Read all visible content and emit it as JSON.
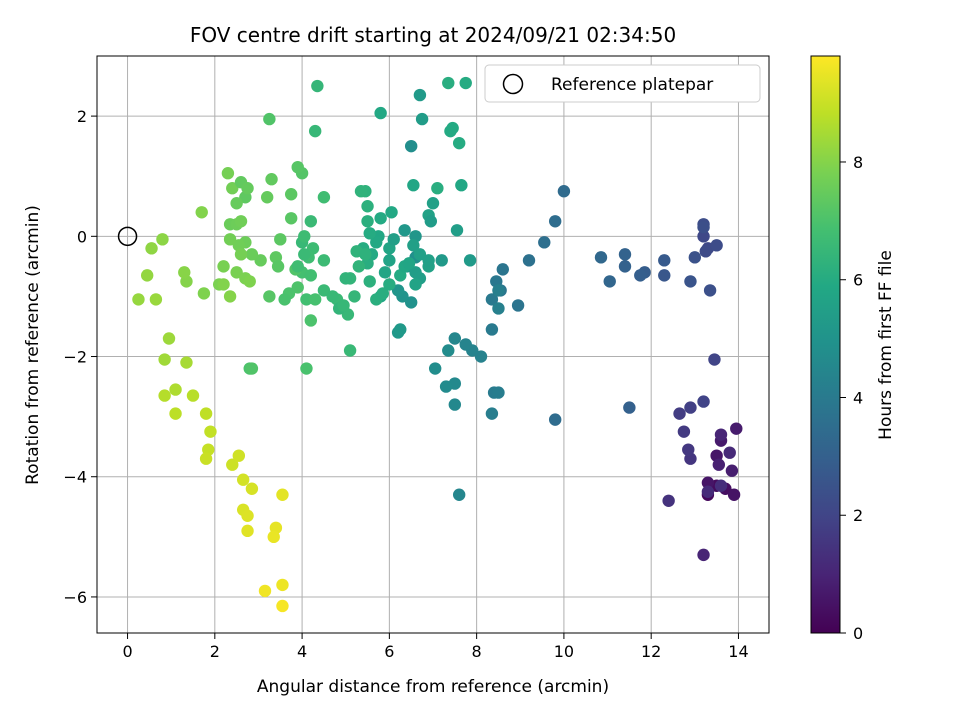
{
  "chart_data": {
    "type": "scatter",
    "title": "FOV centre drift starting at 2024/09/21 02:34:50",
    "xlabel": "Angular distance from reference (arcmin)",
    "ylabel": "Rotation from reference (arcmin)",
    "xlim": [
      -0.7,
      14.7
    ],
    "ylim": [
      -6.6,
      3.0
    ],
    "xticks": [
      0,
      2,
      4,
      6,
      8,
      10,
      12,
      14
    ],
    "yticks": [
      -6,
      -4,
      -2,
      0,
      2
    ],
    "xtick_labels": [
      "0",
      "2",
      "4",
      "6",
      "8",
      "10",
      "12",
      "14"
    ],
    "ytick_labels": [
      "−6",
      "−4",
      "−2",
      "0",
      "2"
    ],
    "grid": true,
    "legend": {
      "position": "upper-right",
      "entries": [
        "Reference platepar"
      ]
    },
    "reference_point": {
      "x": 0,
      "y": 0
    },
    "colorbar": {
      "label": "Hours from first FF file",
      "colormap": "viridis",
      "range": [
        0,
        9.8
      ],
      "ticks": [
        0,
        2,
        4,
        6,
        8
      ],
      "tick_labels": [
        "0",
        "2",
        "4",
        "6",
        "8"
      ]
    },
    "points": [
      [
        13.3,
        -4.3,
        0.2
      ],
      [
        13.5,
        -4.15,
        0.3
      ],
      [
        13.7,
        -4.2,
        0.4
      ],
      [
        13.9,
        -4.3,
        0.5
      ],
      [
        13.3,
        -4.1,
        0.55
      ],
      [
        13.5,
        -3.65,
        0.6
      ],
      [
        13.6,
        -3.4,
        0.7
      ],
      [
        13.95,
        -3.2,
        0.75
      ],
      [
        13.85,
        -3.9,
        0.8
      ],
      [
        13.55,
        -3.8,
        0.9
      ],
      [
        13.2,
        -5.3,
        1.0
      ],
      [
        13.6,
        -3.3,
        1.05
      ],
      [
        13.8,
        -3.6,
        1.15
      ],
      [
        13.3,
        -4.25,
        1.2
      ],
      [
        13.6,
        -4.15,
        1.3
      ],
      [
        12.4,
        -4.4,
        1.4
      ],
      [
        12.9,
        -3.7,
        1.5
      ],
      [
        12.85,
        -3.55,
        1.6
      ],
      [
        12.75,
        -3.25,
        1.65
      ],
      [
        12.65,
        -2.95,
        1.75
      ],
      [
        12.9,
        -2.85,
        1.85
      ],
      [
        13.2,
        -2.75,
        1.95
      ],
      [
        13.45,
        -2.05,
        2.0
      ],
      [
        13.2,
        -0.0,
        2.1
      ],
      [
        13.3,
        -0.2,
        2.15
      ],
      [
        13.25,
        -0.25,
        2.2
      ],
      [
        13.5,
        -0.15,
        2.25
      ],
      [
        13.2,
        0.2,
        2.3
      ],
      [
        13.2,
        0.15,
        2.35
      ],
      [
        13.35,
        -0.9,
        2.4
      ],
      [
        13.0,
        -0.35,
        2.45
      ],
      [
        12.9,
        -0.75,
        2.55
      ],
      [
        12.3,
        -0.65,
        2.65
      ],
      [
        12.3,
        -0.4,
        2.75
      ],
      [
        11.85,
        -0.6,
        2.85
      ],
      [
        11.75,
        -0.65,
        2.95
      ],
      [
        11.5,
        -2.85,
        3.0
      ],
      [
        11.4,
        -0.5,
        3.05
      ],
      [
        11.4,
        -0.3,
        3.1
      ],
      [
        11.05,
        -0.75,
        3.2
      ],
      [
        10.85,
        -0.35,
        3.3
      ],
      [
        10.0,
        0.75,
        3.4
      ],
      [
        9.8,
        -3.05,
        3.45
      ],
      [
        9.8,
        0.25,
        3.5
      ],
      [
        9.55,
        -0.1,
        3.55
      ],
      [
        9.2,
        -0.4,
        3.65
      ],
      [
        8.95,
        -1.15,
        3.75
      ],
      [
        8.6,
        -0.55,
        3.8
      ],
      [
        8.55,
        -0.9,
        3.85
      ],
      [
        8.45,
        -0.75,
        3.9
      ],
      [
        8.35,
        -1.05,
        3.95
      ],
      [
        8.35,
        -1.55,
        4.0
      ],
      [
        8.4,
        -2.6,
        4.05
      ],
      [
        8.5,
        -2.6,
        4.1
      ],
      [
        8.35,
        -2.95,
        4.15
      ],
      [
        8.5,
        -0.9,
        4.2
      ],
      [
        8.5,
        -1.2,
        4.25
      ],
      [
        8.1,
        -2.0,
        4.3
      ],
      [
        7.9,
        -1.9,
        4.35
      ],
      [
        7.75,
        -1.8,
        4.4
      ],
      [
        7.6,
        -4.3,
        4.45
      ],
      [
        7.5,
        -1.7,
        4.5
      ],
      [
        7.5,
        -2.8,
        4.55
      ],
      [
        7.5,
        -2.45,
        4.6
      ],
      [
        7.3,
        -2.5,
        4.65
      ],
      [
        7.35,
        -1.9,
        4.7
      ],
      [
        7.05,
        -2.2,
        4.75
      ],
      [
        6.5,
        1.5,
        4.8
      ],
      [
        6.6,
        -0.35,
        4.85
      ],
      [
        6.4,
        -0.5,
        4.9
      ],
      [
        6.5,
        -1.1,
        4.95
      ],
      [
        6.3,
        -1.0,
        5.0
      ],
      [
        6.2,
        -0.9,
        5.05
      ],
      [
        6.6,
        0.0,
        5.1
      ],
      [
        6.35,
        0.1,
        5.15
      ],
      [
        6.2,
        -1.6,
        5.2
      ],
      [
        6.25,
        -1.55,
        5.25
      ],
      [
        6.7,
        2.35,
        5.3
      ],
      [
        6.75,
        1.95,
        5.35
      ],
      [
        6.6,
        -0.6,
        5.4
      ],
      [
        6.7,
        -0.7,
        5.45
      ],
      [
        6.55,
        -0.15,
        5.5
      ],
      [
        6.7,
        -0.3,
        5.55
      ],
      [
        6.9,
        0.35,
        5.6
      ],
      [
        6.0,
        -0.4,
        5.65
      ],
      [
        6.0,
        -0.2,
        5.7
      ],
      [
        5.9,
        -0.6,
        5.75
      ],
      [
        5.8,
        -1.0,
        5.8
      ],
      [
        5.75,
        0.0,
        5.85
      ],
      [
        5.7,
        -0.1,
        5.9
      ],
      [
        5.6,
        -0.3,
        5.95
      ],
      [
        5.55,
        0.05,
        6.0
      ],
      [
        5.4,
        -0.2,
        6.05
      ],
      [
        5.5,
        -0.45,
        6.1
      ],
      [
        5.5,
        0.25,
        6.15
      ],
      [
        5.5,
        0.5,
        6.2
      ],
      [
        5.45,
        0.75,
        6.25
      ],
      [
        5.35,
        0.75,
        6.3
      ],
      [
        5.3,
        -0.5,
        6.35
      ],
      [
        5.1,
        -0.7,
        6.4
      ],
      [
        5.2,
        -1.0,
        6.45
      ],
      [
        5.05,
        -1.3,
        6.5
      ],
      [
        5.1,
        -1.9,
        6.55
      ],
      [
        4.8,
        -1.05,
        6.6
      ],
      [
        4.5,
        -0.4,
        6.65
      ],
      [
        4.25,
        -0.2,
        6.7
      ],
      [
        4.15,
        -0.35,
        6.75
      ],
      [
        4.1,
        -1.05,
        6.8
      ],
      [
        4.0,
        -0.6,
        6.85
      ],
      [
        4.3,
        -1.05,
        6.9
      ],
      [
        4.1,
        -2.2,
        6.95
      ],
      [
        4.2,
        -1.4,
        7.0
      ],
      [
        3.9,
        -0.85,
        7.05
      ],
      [
        3.85,
        -0.55,
        7.1
      ],
      [
        4.0,
        1.05,
        7.15
      ],
      [
        3.9,
        1.15,
        7.2
      ],
      [
        3.75,
        0.3,
        7.25
      ],
      [
        3.5,
        -0.05,
        7.3
      ],
      [
        3.4,
        -0.35,
        7.35
      ],
      [
        3.3,
        0.95,
        7.4
      ],
      [
        3.2,
        0.65,
        7.45
      ],
      [
        3.05,
        -0.4,
        7.5
      ],
      [
        2.85,
        -0.3,
        7.55
      ],
      [
        2.7,
        -0.1,
        7.6
      ],
      [
        2.55,
        -0.15,
        7.65
      ],
      [
        2.4,
        0.8,
        7.7
      ],
      [
        2.3,
        1.05,
        7.75
      ],
      [
        2.2,
        -0.5,
        7.8
      ],
      [
        2.1,
        -0.8,
        7.85
      ],
      [
        1.75,
        -0.95,
        7.9
      ],
      [
        1.7,
        0.4,
        7.95
      ],
      [
        1.35,
        -0.75,
        8.0
      ],
      [
        1.3,
        -0.6,
        8.05
      ],
      [
        0.8,
        -0.05,
        8.1
      ],
      [
        0.55,
        -0.2,
        8.15
      ],
      [
        0.45,
        -0.65,
        8.2
      ],
      [
        0.25,
        -1.05,
        8.25
      ],
      [
        0.65,
        -1.05,
        8.3
      ],
      [
        0.95,
        -1.7,
        8.35
      ],
      [
        0.85,
        -2.05,
        8.4
      ],
      [
        1.35,
        -2.1,
        8.5
      ],
      [
        1.1,
        -2.55,
        8.6
      ],
      [
        0.85,
        -2.65,
        8.7
      ],
      [
        1.5,
        -2.65,
        8.75
      ],
      [
        1.1,
        -2.95,
        8.8
      ],
      [
        1.8,
        -2.95,
        8.85
      ],
      [
        1.9,
        -3.25,
        8.9
      ],
      [
        1.85,
        -3.55,
        8.95
      ],
      [
        1.8,
        -3.7,
        9.0
      ],
      [
        2.4,
        -3.8,
        9.05
      ],
      [
        2.55,
        -3.65,
        9.1
      ],
      [
        2.65,
        -4.05,
        9.15
      ],
      [
        2.85,
        -4.2,
        9.2
      ],
      [
        2.65,
        -4.55,
        9.25
      ],
      [
        2.75,
        -4.65,
        9.3
      ],
      [
        2.75,
        -4.9,
        9.35
      ],
      [
        3.55,
        -4.3,
        9.4
      ],
      [
        3.4,
        -4.85,
        9.45
      ],
      [
        3.35,
        -5.0,
        9.5
      ],
      [
        3.55,
        -5.8,
        9.55
      ],
      [
        3.15,
        -5.9,
        9.6
      ],
      [
        3.55,
        -6.15,
        9.7
      ],
      [
        4.35,
        2.5,
        6.45
      ],
      [
        7.35,
        2.55,
        6.1
      ],
      [
        7.75,
        2.55,
        6.0
      ],
      [
        4.3,
        1.75,
        6.5
      ],
      [
        7.45,
        1.8,
        5.95
      ],
      [
        7.4,
        1.75,
        5.95
      ],
      [
        7.6,
        1.55,
        6.0
      ],
      [
        3.25,
        1.95,
        7.1
      ],
      [
        5.8,
        2.05,
        5.9
      ],
      [
        4.5,
        0.65,
        6.75
      ],
      [
        7.1,
        0.8,
        6.1
      ],
      [
        7.65,
        0.85,
        5.85
      ],
      [
        7.0,
        0.55,
        5.55
      ],
      [
        6.95,
        0.25,
        5.35
      ],
      [
        7.55,
        0.1,
        5.45
      ],
      [
        7.85,
        -0.4,
        5.3
      ],
      [
        7.2,
        -0.4,
        5.25
      ],
      [
        6.55,
        0.85,
        5.8
      ],
      [
        5.8,
        0.3,
        5.95
      ],
      [
        6.05,
        0.4,
        5.9
      ],
      [
        3.75,
        0.7,
        7.3
      ],
      [
        2.7,
        0.65,
        7.35
      ],
      [
        2.6,
        0.9,
        7.4
      ],
      [
        2.75,
        0.8,
        7.45
      ],
      [
        2.5,
        0.55,
        7.5
      ],
      [
        2.35,
        0.2,
        7.55
      ],
      [
        2.5,
        0.2,
        7.6
      ],
      [
        2.6,
        0.25,
        7.65
      ],
      [
        2.35,
        -0.05,
        7.7
      ],
      [
        2.6,
        -0.3,
        7.75
      ],
      [
        2.5,
        -0.6,
        7.8
      ],
      [
        2.7,
        -0.7,
        7.85
      ],
      [
        2.8,
        -0.75,
        7.9
      ],
      [
        2.2,
        -0.8,
        7.95
      ],
      [
        2.35,
        -1.0,
        8.0
      ],
      [
        2.8,
        -2.2,
        7.0
      ],
      [
        2.85,
        -2.2,
        7.1
      ],
      [
        3.25,
        -1.0,
        7.2
      ],
      [
        3.45,
        -0.5,
        7.25
      ],
      [
        3.7,
        -0.95,
        7.0
      ],
      [
        3.6,
        -1.05,
        6.95
      ],
      [
        4.05,
        -0.3,
        6.6
      ],
      [
        4.0,
        -0.1,
        6.55
      ],
      [
        4.2,
        0.25,
        6.6
      ],
      [
        4.05,
        0.0,
        6.7
      ],
      [
        3.9,
        -0.5,
        6.75
      ],
      [
        4.2,
        -0.65,
        6.8
      ],
      [
        4.5,
        -0.9,
        6.6
      ],
      [
        4.7,
        -1.0,
        6.55
      ],
      [
        4.85,
        -1.2,
        6.4
      ],
      [
        4.95,
        -1.15,
        6.5
      ],
      [
        5.0,
        -0.7,
        6.35
      ],
      [
        5.25,
        -0.25,
        6.3
      ],
      [
        5.45,
        -0.3,
        6.25
      ],
      [
        5.55,
        -0.75,
        6.2
      ],
      [
        5.7,
        -1.05,
        6.15
      ],
      [
        5.85,
        -0.95,
        6.1
      ],
      [
        6.0,
        -0.8,
        6.05
      ],
      [
        6.25,
        -0.65,
        5.95
      ],
      [
        6.35,
        -0.5,
        5.85
      ],
      [
        6.45,
        -0.45,
        5.75
      ],
      [
        6.6,
        -0.8,
        5.65
      ],
      [
        6.9,
        -0.5,
        5.6
      ],
      [
        6.9,
        -0.4,
        5.55
      ],
      [
        6.1,
        -0.05,
        5.5
      ]
    ]
  }
}
